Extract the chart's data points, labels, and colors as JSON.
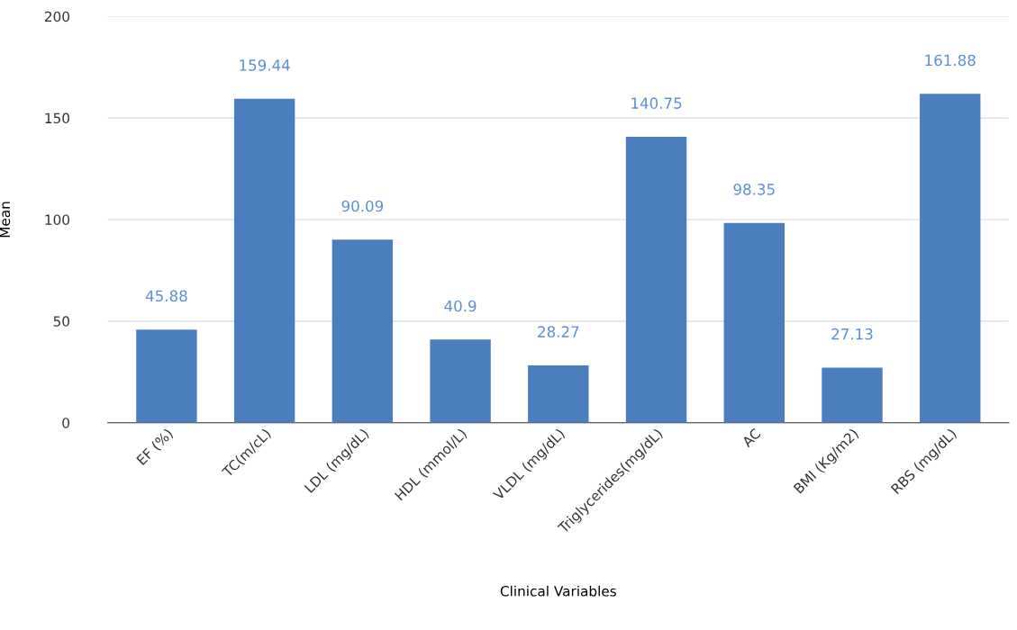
{
  "chart_data": {
    "type": "bar",
    "xlabel": "Clinical Variables",
    "ylabel": "Mean",
    "categories": [
      "EF (%)",
      "TC(m/cL)",
      "LDL (mg/dL)",
      "HDL (mmol/L)",
      "VLDL (mg/dL)",
      "Triglycerides(mg/dL)",
      "AC",
      "BMI (Kg/m2)",
      "RBS (mg/dL)"
    ],
    "values": [
      45.88,
      159.44,
      90.09,
      40.9,
      28.27,
      140.75,
      98.35,
      27.13,
      161.88
    ],
    "color": "#4a7ebf",
    "data_labels": true,
    "ylim": [
      0,
      200
    ],
    "yticks": [
      0,
      50,
      100,
      150,
      200
    ],
    "grid": "y",
    "legend": false
  }
}
